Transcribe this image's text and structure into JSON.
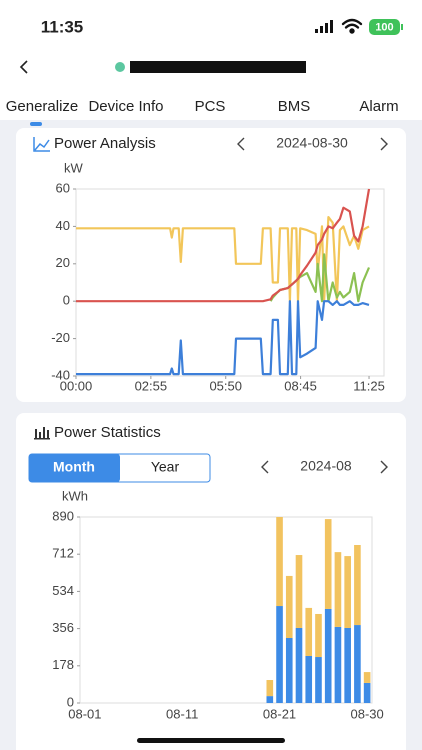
{
  "status_bar": {
    "time": "11:35",
    "battery": "100"
  },
  "tabs": [
    "Generalize",
    "Device Info",
    "PCS",
    "BMS",
    "Alarm"
  ],
  "chart_data": [
    {
      "type": "line",
      "title": "Power Analysis",
      "date": "2024-08-30",
      "unit": "kW",
      "x": [
        0,
        220,
        224,
        228,
        240,
        245,
        250,
        370,
        374,
        432,
        437,
        455,
        460,
        472,
        477,
        495,
        500,
        505,
        515,
        519,
        524,
        540,
        560,
        565,
        575,
        580,
        590,
        600,
        610,
        617,
        625,
        640,
        650,
        660,
        670,
        685
      ],
      "xlim": [
        0,
        720
      ],
      "xticks": [
        {
          "value": 0,
          "label": "00:00"
        },
        {
          "value": 175,
          "label": "02:55"
        },
        {
          "value": 350,
          "label": "05:50"
        },
        {
          "value": 525,
          "label": "08:45"
        },
        {
          "value": 685,
          "label": "11:25"
        }
      ],
      "ylim": [
        -40,
        60
      ],
      "yticks": [
        60,
        40,
        20,
        0,
        -20,
        -40
      ],
      "grid": false,
      "series": [
        {
          "color": "#f2c65a",
          "values": [
            39,
            39,
            34,
            39,
            39,
            21,
            39,
            39,
            20,
            20,
            39,
            39,
            10,
            10,
            39,
            39,
            0,
            39,
            39,
            0,
            39,
            38,
            36,
            15,
            40,
            0,
            45,
            42,
            0,
            38,
            40,
            30,
            35,
            28,
            38,
            40
          ]
        },
        {
          "color": "#8cc152",
          "values": [
            null,
            null,
            null,
            null,
            null,
            null,
            null,
            null,
            null,
            null,
            null,
            0,
            2,
            5,
            6,
            7,
            8,
            9,
            11,
            12,
            13,
            15,
            5,
            20,
            0,
            25,
            0,
            10,
            2,
            5,
            2,
            5,
            15,
            0,
            10,
            18
          ]
        },
        {
          "color": "#d9534f",
          "values": [
            0,
            0,
            0,
            0,
            0,
            0,
            0,
            0,
            0,
            0,
            0,
            1,
            3,
            5,
            6,
            7,
            8,
            9,
            11,
            12,
            14,
            19,
            26,
            30,
            33,
            36,
            40,
            39,
            42,
            44,
            50,
            48,
            35,
            32,
            40,
            60
          ]
        },
        {
          "color": "#3d7fd9",
          "values": [
            -39,
            -39,
            -36,
            -39,
            -39,
            -21,
            -39,
            -39,
            -20,
            -20,
            -39,
            -39,
            -10,
            -10,
            -39,
            -39,
            0,
            -39,
            -39,
            0,
            -30,
            -28,
            -25,
            0,
            -10,
            0,
            0,
            -2,
            0,
            -2,
            -2,
            0,
            -2,
            -2,
            -1,
            -2
          ]
        }
      ]
    },
    {
      "type": "bar",
      "stacked": true,
      "title": "Power Statistics",
      "toggle": [
        "Month",
        "Year"
      ],
      "date": "2024-08",
      "unit": "kWh",
      "categories": [
        "08-01",
        null,
        null,
        null,
        null,
        null,
        null,
        null,
        null,
        null,
        "08-11",
        null,
        null,
        null,
        null,
        null,
        null,
        null,
        null,
        null,
        "08-21",
        null,
        null,
        null,
        null,
        null,
        null,
        null,
        null,
        "08-30"
      ],
      "ylim": [
        0,
        890
      ],
      "yticks": [
        0,
        178,
        356,
        534,
        712,
        890
      ],
      "grid": false,
      "series": [
        {
          "color": "#3d8be6",
          "values": [
            0,
            0,
            0,
            0,
            0,
            0,
            0,
            0,
            0,
            0,
            0,
            0,
            0,
            0,
            0,
            0,
            0,
            0,
            0,
            33,
            464,
            311,
            359,
            225,
            220,
            450,
            364,
            359,
            373,
            96
          ]
        },
        {
          "color": "#f2c35f",
          "values": [
            0,
            0,
            0,
            0,
            0,
            0,
            0,
            0,
            0,
            0,
            0,
            0,
            0,
            0,
            0,
            0,
            0,
            0,
            0,
            77,
            426,
            297,
            349,
            230,
            206,
            430,
            358,
            344,
            383,
            52
          ]
        }
      ]
    }
  ]
}
